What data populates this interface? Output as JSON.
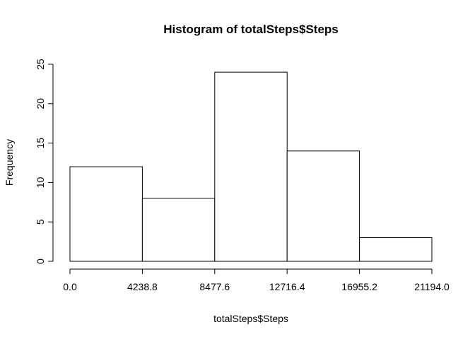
{
  "chart_data": {
    "type": "bar",
    "title": "Histogram of totalSteps$Steps",
    "xlabel": "totalSteps$Steps",
    "ylabel": "Frequency",
    "bin_edges": [
      0.0,
      4238.8,
      8477.6,
      12716.4,
      16955.2,
      21194.0
    ],
    "x_tick_labels": [
      "0.0",
      "4238.8",
      "8477.6",
      "12716.4",
      "16955.2",
      "21194.0"
    ],
    "values": [
      12,
      8,
      24,
      14,
      3
    ],
    "y_ticks": [
      0,
      5,
      10,
      15,
      20,
      25
    ],
    "y_tick_labels": [
      "0",
      "5",
      "10",
      "15",
      "20",
      "25"
    ],
    "ylim": [
      0,
      25
    ],
    "xlim": [
      0.0,
      21194.0
    ],
    "grid": false,
    "legend": "none",
    "bar_fill": "#ffffff",
    "bar_stroke": "#000000"
  }
}
